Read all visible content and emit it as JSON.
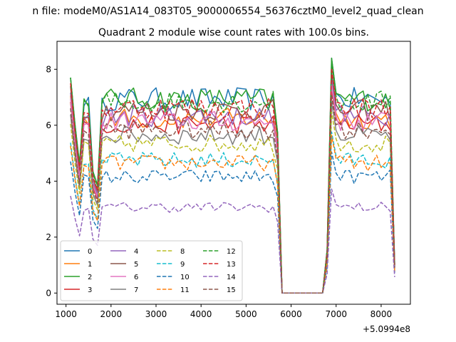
{
  "chart_data": {
    "type": "line",
    "suptitle": "n file: modeM0/AS1A14_083T05_9000006554_56376cztM0_level2_quad_clean",
    "title": "Quadrant 2 module wise count rates with 100.0s bins.",
    "xlabel": "",
    "ylabel": "",
    "x_offset_label": "+5.0994e8",
    "xlim": [
      800,
      8650
    ],
    "ylim": [
      -0.4,
      9.0
    ],
    "xticks": [
      1000,
      2000,
      3000,
      4000,
      5000,
      6000,
      7000,
      8000
    ],
    "yticks": [
      0,
      2,
      4,
      6,
      8
    ],
    "legend_loc": "lower-left",
    "legend_ncol": 4,
    "x": [
      1100,
      1200,
      1300,
      1400,
      1500,
      1600,
      1700,
      1800,
      1900,
      2000,
      2100,
      2200,
      2300,
      2400,
      2500,
      2600,
      2700,
      2800,
      2900,
      3000,
      3100,
      3200,
      3300,
      3400,
      3500,
      3600,
      3700,
      3800,
      3900,
      4000,
      4100,
      4200,
      4300,
      4400,
      4500,
      4600,
      4700,
      4800,
      4900,
      5000,
      5100,
      5200,
      5300,
      5400,
      5500,
      5600,
      5700,
      5800,
      5900,
      6000,
      6100,
      6200,
      6300,
      6400,
      6500,
      6600,
      6700,
      6800,
      6900,
      7000,
      7100,
      7200,
      7300,
      7400,
      7500,
      7600,
      7700,
      7800,
      7900,
      8000,
      8100,
      8200,
      8300
    ],
    "series": [
      {
        "name": "0",
        "color": "#1f77b4",
        "dash": "solid",
        "base": 7.0
      },
      {
        "name": "1",
        "color": "#ff7f0e",
        "dash": "solid",
        "base": 6.3
      },
      {
        "name": "2",
        "color": "#2ca02c",
        "dash": "solid",
        "base": 7.0
      },
      {
        "name": "3",
        "color": "#d62728",
        "dash": "solid",
        "base": 6.1
      },
      {
        "name": "4",
        "color": "#9467bd",
        "dash": "solid",
        "base": 6.4
      },
      {
        "name": "5",
        "color": "#8c564b",
        "dash": "solid",
        "base": 6.6
      },
      {
        "name": "6",
        "color": "#e377c2",
        "dash": "solid",
        "base": 6.2
      },
      {
        "name": "7",
        "color": "#7f7f7f",
        "dash": "solid",
        "base": 5.7
      },
      {
        "name": "8",
        "color": "#bcbd22",
        "dash": "dashed",
        "base": 5.4
      },
      {
        "name": "9",
        "color": "#17becf",
        "dash": "dashed",
        "base": 4.8
      },
      {
        "name": "10",
        "color": "#1f77b4",
        "dash": "dashed",
        "base": 4.2
      },
      {
        "name": "11",
        "color": "#ff7f0e",
        "dash": "dashed",
        "base": 4.7
      },
      {
        "name": "12",
        "color": "#2ca02c",
        "dash": "dashed",
        "base": 6.9
      },
      {
        "name": "13",
        "color": "#d62728",
        "dash": "dashed",
        "base": 6.7
      },
      {
        "name": "14",
        "color": "#9467bd",
        "dash": "dashed",
        "base": 3.1
      },
      {
        "name": "15",
        "color": "#8c564b",
        "dash": "dashed",
        "base": 5.9
      }
    ]
  }
}
